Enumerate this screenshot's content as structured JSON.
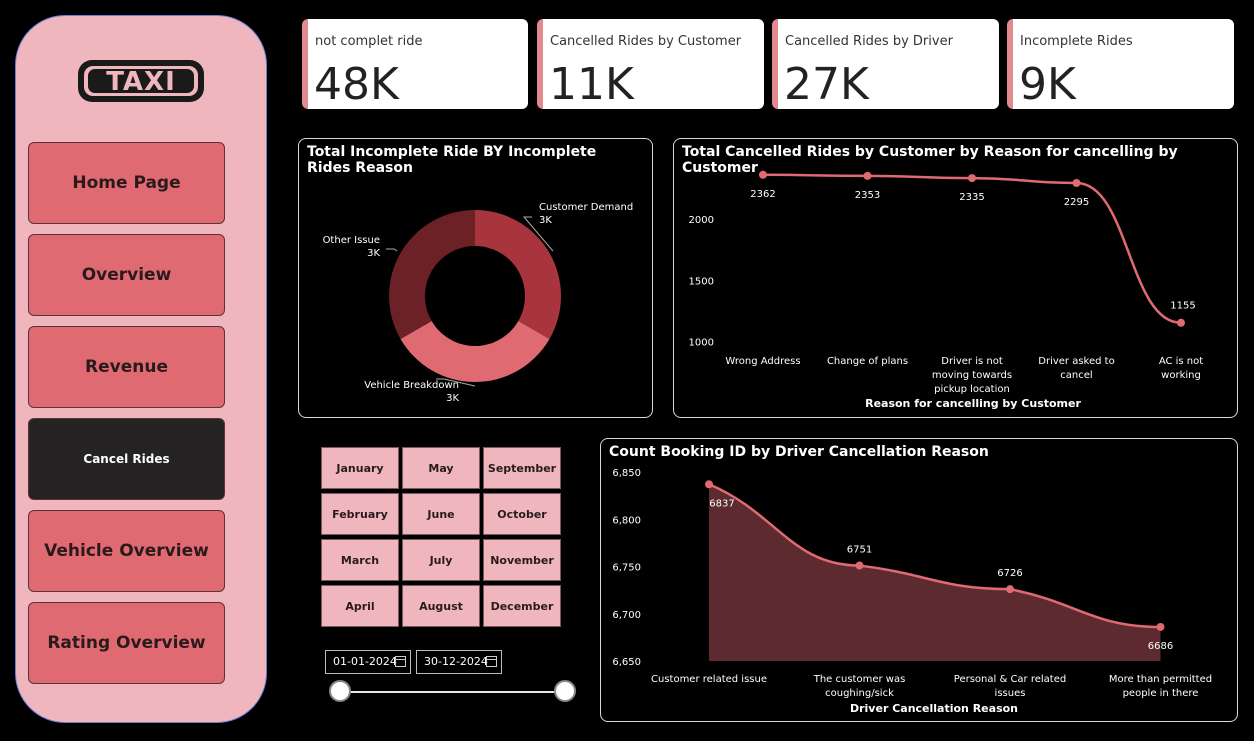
{
  "logo": {
    "text": "TAXI"
  },
  "nav": [
    {
      "label": "Home Page"
    },
    {
      "label": "Overview"
    },
    {
      "label": "Revenue"
    },
    {
      "label": "Cancel Rides"
    },
    {
      "label": "Vehicle Overview"
    },
    {
      "label": "Rating Overview"
    }
  ],
  "kpis": [
    {
      "label": "not complet ride",
      "value": "48K"
    },
    {
      "label": "Cancelled Rides by Customer",
      "value": "11K"
    },
    {
      "label": "Cancelled Rides by Driver",
      "value": "27K"
    },
    {
      "label": "Incomplete Rides",
      "value": "9K"
    }
  ],
  "months": [
    "January",
    "May",
    "September",
    "February",
    "June",
    "October",
    "March",
    "July",
    "November",
    "April",
    "August",
    "December"
  ],
  "date_range": {
    "start": "01-01-2024",
    "end": "30-12-2024"
  },
  "colors": {
    "accent": "#e06a72",
    "sidebar": "#efb7bd",
    "dark_red": "#6b2126",
    "mid_red": "#a8353d"
  },
  "chart_data": [
    {
      "type": "pie",
      "title": "Total Incomplete Ride BY Incomplete Rides Reason",
      "categories": [
        "Customer Demand",
        "Vehicle Breakdown",
        "Other Issue"
      ],
      "values": [
        3,
        3,
        3
      ],
      "data_labels": [
        "3K",
        "3K",
        "3K"
      ],
      "colors": [
        "#a8353d",
        "#e06a72",
        "#6b2126"
      ]
    },
    {
      "type": "line",
      "title": "Total Cancelled Rides by Customer by Reason for cancelling by Customer",
      "categories": [
        "Wrong Address",
        "Change of plans",
        "Driver is not moving towards pickup location",
        "Driver asked to cancel",
        "AC is not working"
      ],
      "values": [
        2362,
        2353,
        2335,
        2295,
        1155
      ],
      "xlabel": "Reason for cancelling by Customer",
      "ylabel": "",
      "yticks": [
        "2000",
        "1500",
        "1000"
      ],
      "ylim": [
        900,
        2450
      ]
    },
    {
      "type": "area",
      "title": "Count Booking ID by Driver Cancellation Reason",
      "categories": [
        "Customer related issue",
        "The customer was coughing/sick",
        "Personal & Car related issues",
        "More than permitted people in there"
      ],
      "values": [
        6837,
        6751,
        6726,
        6686
      ],
      "xlabel": "Driver Cancellation Reason",
      "ylabel": "",
      "yticks": [
        "6,850",
        "6,800",
        "6,750",
        "6,700",
        "6,650"
      ],
      "ylim": [
        6650,
        6850
      ]
    }
  ]
}
